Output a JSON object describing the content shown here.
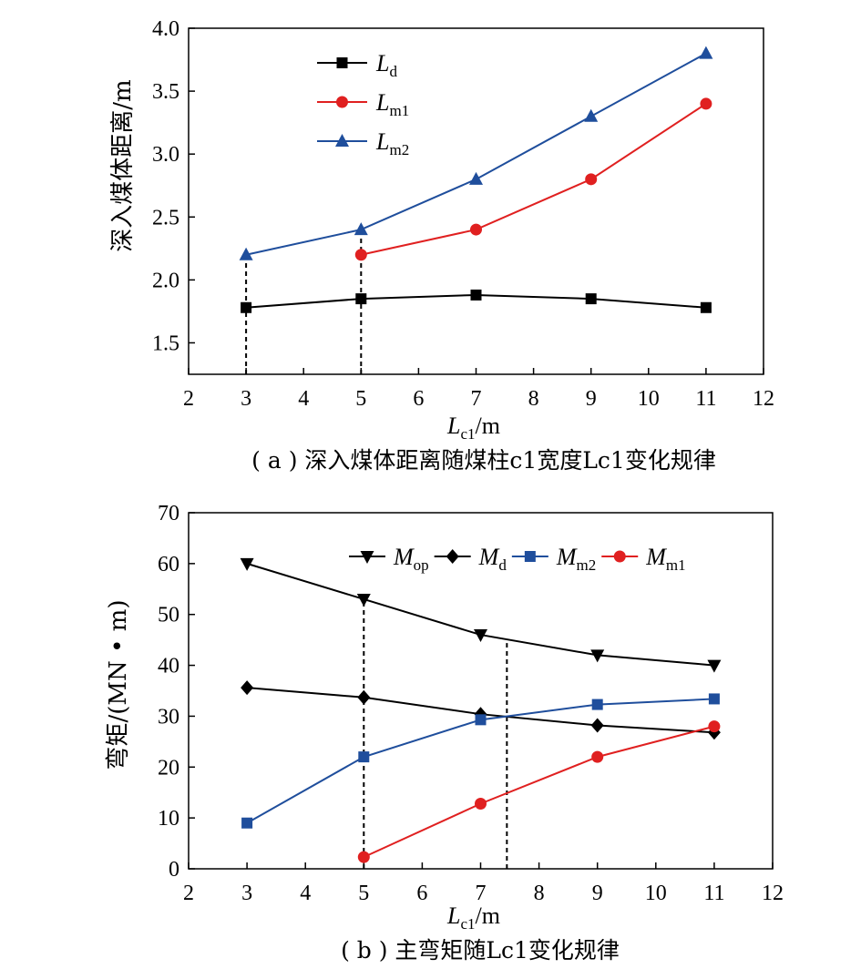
{
  "chart_data": [
    {
      "type": "line",
      "panel": "a",
      "caption": "( a ) 深入煤体距离随煤柱c1宽度Lc1变化规律",
      "xlabel": "Lc1/m",
      "ylabel": "深入煤体距离/m",
      "xlim": [
        2,
        12
      ],
      "ylim": [
        1.25,
        4.0
      ],
      "xticks": [
        2,
        3,
        4,
        5,
        6,
        7,
        8,
        9,
        10,
        11,
        12
      ],
      "yticks": [
        1.5,
        2.0,
        2.5,
        3.0,
        3.5,
        4.0
      ],
      "ytick_labels": [
        "1.5",
        "2.0",
        "2.5",
        "3.0",
        "3.5",
        "4.0"
      ],
      "legend_position": "top-left",
      "grid": false,
      "guides_x": [
        3,
        5
      ],
      "series": [
        {
          "name": "Ld",
          "marker": "square",
          "color": "#000000",
          "x": [
            3,
            5,
            7,
            9,
            11
          ],
          "values": [
            1.78,
            1.85,
            1.88,
            1.85,
            1.78
          ]
        },
        {
          "name": "Lm1",
          "marker": "circle",
          "color": "#e02020",
          "x": [
            5,
            7,
            9,
            11
          ],
          "values": [
            2.2,
            2.4,
            2.8,
            3.4
          ]
        },
        {
          "name": "Lm2",
          "marker": "triangle-up",
          "color": "#1f4e9c",
          "x": [
            3,
            5,
            7,
            9,
            11
          ],
          "values": [
            2.2,
            2.4,
            2.8,
            3.3,
            3.8
          ]
        }
      ]
    },
    {
      "type": "line",
      "panel": "b",
      "caption": "( b ) 主弯矩随Lc1变化规律",
      "xlabel": "Lc1/m",
      "ylabel": "弯矩/(MN • m)",
      "xlim": [
        2,
        12
      ],
      "ylim": [
        0,
        70
      ],
      "xticks": [
        2,
        3,
        4,
        5,
        6,
        7,
        8,
        9,
        10,
        11,
        12
      ],
      "yticks": [
        0,
        10,
        20,
        30,
        40,
        50,
        60,
        70
      ],
      "ytick_labels": [
        "0",
        "10",
        "20",
        "30",
        "40",
        "50",
        "60",
        "70"
      ],
      "legend_position": "top",
      "grid": false,
      "guides_x": [
        5,
        7.45
      ],
      "series": [
        {
          "name": "Mop",
          "marker": "triangle-down",
          "color": "#000000",
          "x": [
            3,
            5,
            7,
            9,
            11
          ],
          "values": [
            60,
            53,
            46,
            42,
            40
          ]
        },
        {
          "name": "Md",
          "marker": "diamond",
          "color": "#000000",
          "x": [
            3,
            5,
            7,
            9,
            11
          ],
          "values": [
            35.6,
            33.7,
            30.4,
            28.2,
            26.8
          ]
        },
        {
          "name": "Mm2",
          "marker": "square",
          "color": "#1f4e9c",
          "x": [
            3,
            5,
            7,
            9,
            11
          ],
          "values": [
            9,
            22,
            29.3,
            32.3,
            33.4
          ]
        },
        {
          "name": "Mm1",
          "marker": "circle",
          "color": "#e02020",
          "x": [
            5,
            7,
            9,
            11
          ],
          "values": [
            2.3,
            12.8,
            22,
            28
          ]
        }
      ]
    }
  ]
}
